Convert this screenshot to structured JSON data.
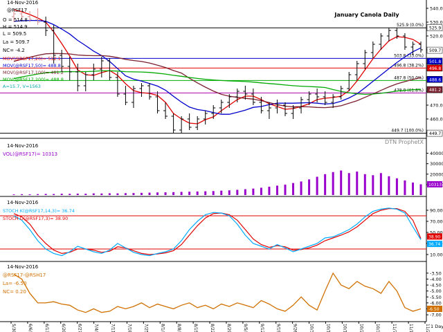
{
  "chart_data": [
    {
      "type": "candlestick",
      "panel": "price",
      "title": "January Canola Daily",
      "header": {
        "date": "14-Nov-2016",
        "symbol": "@RSF17",
        "open": "O = 514.8",
        "high": "H = 514.9",
        "low": "L = 509.5",
        "last": "La = 509.7",
        "net_change": "NC= -4.2"
      },
      "legend": [
        {
          "label": "MOV(@RSF17,20)= 512.1",
          "color": "#e00000"
        },
        {
          "label": "MOV(@RSF17,50)= 488.8",
          "color": "#0000cc"
        },
        {
          "label": "MOV(@RSF17,100)= 481.2",
          "color": "#7a1f2e"
        },
        {
          "label": "MOV(@RSF17,200)= 488.8",
          "color": "#00aa00"
        },
        {
          "label": "A=15.7, V=1563",
          "color": "#00aaaa"
        }
      ],
      "yticks": [
        540.0,
        530.0,
        520.0,
        510.0,
        500.0,
        490.0,
        480.0,
        470.0,
        460.0,
        450.0
      ],
      "ylim": [
        447,
        545
      ],
      "retracement_labels": [
        {
          "text": "525.9 (0.0%)",
          "value": 525.9
        },
        {
          "text": "503.8 (33.0%)",
          "value": 503.8
        },
        {
          "text": "496.8 (38.2%)",
          "value": 496.8
        },
        {
          "text": "487.8 (50.0%)",
          "value": 487.8
        },
        {
          "text": "478.8 (61.8%)",
          "value": 478.8
        },
        {
          "text": "449.7 (100.0%)",
          "value": 449.7
        }
      ],
      "right_badges": [
        {
          "text": "525.9",
          "color": "#ffffff"
        },
        {
          "text": "509.7",
          "color": "#ffffff"
        },
        {
          "text": "501.8",
          "color": "#0000cc"
        },
        {
          "text": "496.8",
          "color": "#e00000"
        },
        {
          "text": "488.6",
          "color": "#0000cc"
        },
        {
          "text": "481.2",
          "color": "#7a1f2e"
        },
        {
          "text": "449.7",
          "color": "#ffffff"
        }
      ],
      "watermark": "DTN ProphetX",
      "candles_approx": [
        [
          534,
          538,
          530,
          536
        ],
        [
          536,
          539,
          532,
          534
        ],
        [
          534,
          538,
          530,
          532
        ],
        [
          532,
          540,
          528,
          530
        ],
        [
          530,
          534,
          520,
          524
        ],
        [
          524,
          528,
          500,
          506
        ],
        [
          506,
          510,
          494,
          498
        ],
        [
          498,
          505,
          488,
          494
        ],
        [
          494,
          500,
          480,
          484
        ],
        [
          484,
          494,
          480,
          492
        ],
        [
          492,
          500,
          488,
          496
        ],
        [
          496,
          505,
          490,
          502
        ],
        [
          502,
          504,
          488,
          490
        ],
        [
          490,
          494,
          476,
          478
        ],
        [
          478,
          484,
          470,
          472
        ],
        [
          472,
          484,
          468,
          482
        ],
        [
          482,
          486,
          476,
          484
        ],
        [
          484,
          486,
          474,
          476
        ],
        [
          476,
          480,
          464,
          466
        ],
        [
          466,
          472,
          460,
          462
        ],
        [
          462,
          464,
          450,
          452
        ],
        [
          452,
          462,
          450,
          460
        ],
        [
          460,
          464,
          452,
          454
        ],
        [
          454,
          462,
          452,
          460
        ],
        [
          460,
          466,
          456,
          464
        ],
        [
          464,
          470,
          460,
          468
        ],
        [
          468,
          474,
          464,
          472
        ],
        [
          472,
          478,
          468,
          476
        ],
        [
          476,
          482,
          472,
          480
        ],
        [
          480,
          484,
          474,
          478
        ],
        [
          478,
          482,
          470,
          472
        ],
        [
          472,
          476,
          464,
          466
        ],
        [
          466,
          472,
          460,
          468
        ],
        [
          468,
          474,
          464,
          470
        ],
        [
          470,
          472,
          462,
          464
        ],
        [
          464,
          470,
          460,
          468
        ],
        [
          468,
          476,
          464,
          474
        ],
        [
          474,
          480,
          470,
          478
        ],
        [
          478,
          482,
          472,
          476
        ],
        [
          476,
          480,
          470,
          472
        ],
        [
          472,
          478,
          468,
          476
        ],
        [
          476,
          484,
          474,
          482
        ],
        [
          482,
          494,
          480,
          492
        ],
        [
          492,
          502,
          488,
          500
        ],
        [
          500,
          510,
          496,
          508
        ],
        [
          508,
          516,
          504,
          514
        ],
        [
          514,
          522,
          510,
          520
        ],
        [
          520,
          526,
          516,
          524
        ],
        [
          524,
          526,
          518,
          520
        ],
        [
          520,
          522,
          510,
          512
        ],
        [
          512,
          516,
          506,
          514
        ],
        [
          514,
          516,
          508,
          510
        ]
      ]
    },
    {
      "type": "bar",
      "panel": "volume",
      "header": {
        "date": "14-Nov-2016",
        "label": "VOL(@RSF17)= 10313"
      },
      "yticks": [
        40000,
        30000,
        20000,
        10000
      ],
      "badge": "10313",
      "values_approx": [
        600,
        800,
        700,
        900,
        1100,
        1000,
        1300,
        1200,
        1400,
        1300,
        1600,
        1500,
        1700,
        1600,
        1800,
        1900,
        2100,
        2300,
        2500,
        2600,
        2800,
        3000,
        3200,
        3400,
        3600,
        3800,
        4200,
        4500,
        5000,
        5600,
        6200,
        7000,
        8000,
        9000,
        10000,
        11500,
        13000,
        15000,
        17500,
        20000,
        22000,
        23500,
        21000,
        22500,
        20000,
        19000,
        21000,
        18000,
        16000,
        14000,
        12000,
        10313
      ]
    },
    {
      "type": "line",
      "panel": "stochastic",
      "header": {
        "date": "14-Nov-2016"
      },
      "legend": [
        {
          "label": "STOCH K(@RSF17,14,3)= 36.74",
          "color": "#00aaff"
        },
        {
          "label": "STOCH D(@RSF17,3)= 38.90",
          "color": "#e00000"
        }
      ],
      "yticks": [
        "90.00",
        "70.00",
        "50.00",
        "30.00",
        "10.00"
      ],
      "ylim": [
        0,
        100
      ],
      "reference_lines": [
        80,
        20
      ],
      "badges": [
        "36.74",
        "38.90"
      ],
      "series": [
        {
          "name": "STOCH K",
          "values": [
            80,
            72,
            55,
            35,
            20,
            12,
            8,
            15,
            25,
            20,
            15,
            12,
            18,
            30,
            22,
            14,
            10,
            8,
            12,
            15,
            20,
            35,
            55,
            70,
            82,
            86,
            85,
            80,
            65,
            45,
            30,
            25,
            20,
            28,
            22,
            15,
            20,
            25,
            30,
            40,
            42,
            48,
            55,
            65,
            78,
            88,
            92,
            94,
            92,
            85,
            60,
            36.74
          ]
        },
        {
          "name": "STOCH D",
          "values": [
            84,
            78,
            65,
            45,
            30,
            18,
            12,
            14,
            20,
            20,
            18,
            14,
            16,
            24,
            22,
            17,
            12,
            10,
            11,
            13,
            17,
            28,
            45,
            62,
            76,
            84,
            85,
            82,
            72,
            55,
            38,
            28,
            23,
            26,
            24,
            18,
            19,
            22,
            27,
            35,
            40,
            45,
            51,
            60,
            72,
            84,
            90,
            93,
            93,
            88,
            72,
            38.9
          ]
        }
      ]
    },
    {
      "type": "line",
      "panel": "spread",
      "header": {
        "date": "14-Nov-2016",
        "symbol": "@RSF17-@RSH17",
        "last": "La= -6.50",
        "net_change": "NC= 0.20"
      },
      "yticks": [
        "-3.50",
        "-4.00",
        "-4.50",
        "-5.00",
        "-5.50",
        "-6.00",
        "-6.50",
        "-7.00"
      ],
      "ylim": [
        -7.4,
        -3.1
      ],
      "badge": "-6.50",
      "x_labels": [
        "5/30/16",
        "6/6/16",
        "6/13/16",
        "6/20/16",
        "6/27/16",
        "7/4/16",
        "7/11/16",
        "7/18/16",
        "7/25/16",
        "8/1/16",
        "8/8/16",
        "8/15/16",
        "8/22/16",
        "8/29/16",
        "9/5/16",
        "9/12/16",
        "9/19/16",
        "9/26/16",
        "10/3/16",
        "10/10/16",
        "10/17/16",
        "10/24/16",
        "10/31/16",
        "11/7/16",
        "11/14/16",
        "11/21/16"
      ],
      "x_axis_right": "1 Day",
      "series": [
        {
          "name": "@RSF17-@RSH17",
          "values": [
            -3.6,
            -4.0,
            -5.2,
            -6.0,
            -6.0,
            -5.9,
            -6.1,
            -6.2,
            -6.6,
            -6.8,
            -6.5,
            -6.8,
            -6.7,
            -6.3,
            -6.5,
            -6.3,
            -6.0,
            -6.4,
            -6.1,
            -6.3,
            -6.5,
            -6.2,
            -6.0,
            -6.4,
            -6.2,
            -6.5,
            -6.1,
            -6.3,
            -6.0,
            -6.2,
            -6.4,
            -5.8,
            -6.1,
            -6.5,
            -6.7,
            -6.2,
            -5.5,
            -6.2,
            -6.6,
            -5.0,
            -3.5,
            -4.5,
            -4.8,
            -4.2,
            -4.6,
            -4.8,
            -5.2,
            -4.2,
            -5.0,
            -6.4,
            -6.7,
            -6.5
          ]
        }
      ]
    }
  ]
}
